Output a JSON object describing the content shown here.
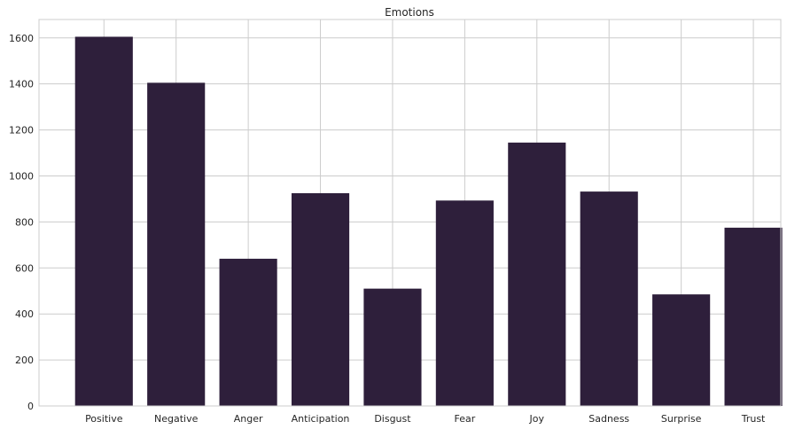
{
  "chart_data": {
    "type": "bar",
    "title": "Emotions",
    "xlabel": "",
    "ylabel": "",
    "categories": [
      "Positive",
      "Negative",
      "Anger",
      "Anticipation",
      "Disgust",
      "Fear",
      "Joy",
      "Sadness",
      "Surprise",
      "Trust"
    ],
    "values": [
      1605,
      1405,
      640,
      925,
      510,
      893,
      1145,
      932,
      485,
      775
    ],
    "ylim": [
      0,
      1680
    ],
    "yticks": [
      0,
      200,
      400,
      600,
      800,
      1000,
      1200,
      1400,
      1600
    ],
    "grid": true,
    "bar_color": "#2e1f3b",
    "grid_color": "#cccccc"
  }
}
